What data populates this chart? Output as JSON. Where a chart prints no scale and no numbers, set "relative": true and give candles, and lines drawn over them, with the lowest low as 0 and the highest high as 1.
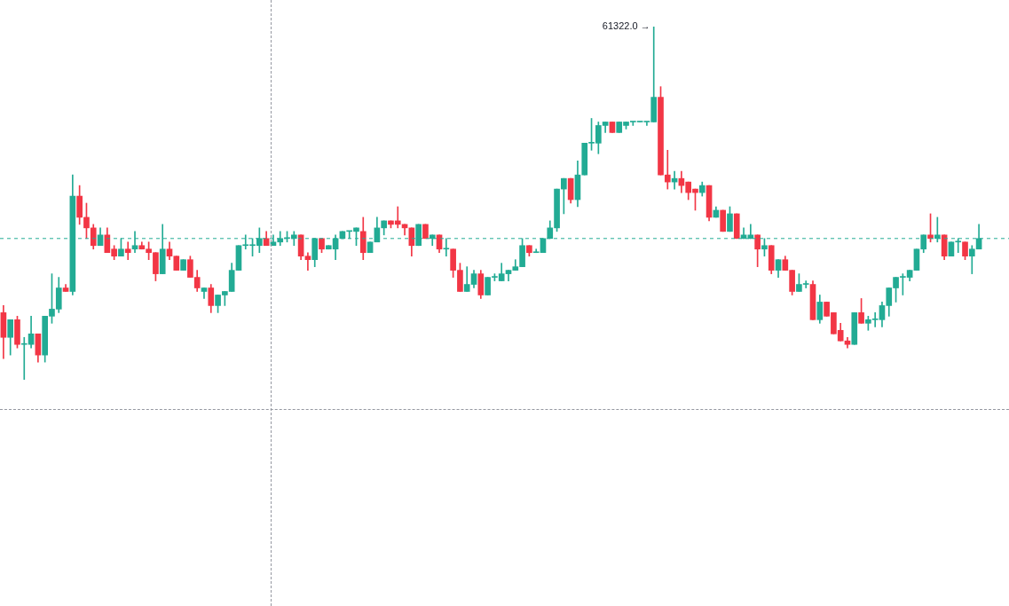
{
  "chart_data": {
    "type": "candlestick",
    "relative": true,
    "categories": [
      null,
      null,
      null,
      null,
      null,
      null,
      null,
      null,
      null,
      null,
      null,
      null,
      null,
      null,
      null,
      null,
      null,
      null,
      null,
      null,
      null,
      null,
      null,
      null,
      null,
      null,
      null,
      null,
      null,
      null,
      null,
      null,
      null,
      null,
      null,
      null,
      null,
      null,
      null,
      null,
      null,
      null,
      null,
      null,
      null,
      null,
      null,
      null,
      null,
      null,
      null,
      null,
      null,
      null,
      null,
      null,
      null,
      null,
      null,
      null,
      null,
      null,
      null,
      null,
      null,
      null,
      null,
      null,
      null,
      null,
      null,
      null,
      null,
      null,
      null,
      null,
      null,
      null,
      null,
      null,
      null,
      null,
      null,
      null,
      null,
      null,
      null,
      null,
      null,
      null,
      null,
      null,
      null,
      null,
      null,
      null,
      null,
      null,
      null,
      null,
      null,
      null,
      null,
      null,
      null,
      null,
      null,
      null,
      null,
      null,
      null,
      null,
      null,
      null,
      null,
      null,
      null,
      null,
      null,
      null,
      null,
      null,
      null,
      null,
      null,
      null,
      null,
      null,
      null,
      null,
      null,
      null,
      null,
      null,
      null,
      null,
      null,
      null,
      null,
      null,
      null,
      null
    ],
    "ohlc": [
      [
        0.19,
        0.21,
        0.06,
        0.12
      ],
      [
        0.12,
        0.17,
        0.07,
        0.17
      ],
      [
        0.17,
        0.18,
        0.09,
        0.1
      ],
      [
        0.1,
        0.12,
        0,
        0.1
      ],
      [
        0.1,
        0.18,
        0.09,
        0.13
      ],
      [
        0.13,
        0.13,
        0.05,
        0.07
      ],
      [
        0.07,
        0.18,
        0.05,
        0.18
      ],
      [
        0.18,
        0.3,
        0.16,
        0.2
      ],
      [
        0.2,
        0.29,
        0.19,
        0.26
      ],
      [
        0.26,
        0.27,
        0.25,
        0.25
      ],
      [
        0.25,
        0.58,
        0.24,
        0.52
      ],
      [
        0.52,
        0.55,
        0.44,
        0.46
      ],
      [
        0.46,
        0.5,
        0.4,
        0.43
      ],
      [
        0.43,
        0.44,
        0.37,
        0.38
      ],
      [
        0.38,
        0.43,
        0.38,
        0.41
      ],
      [
        0.41,
        0.43,
        0.36,
        0.36
      ],
      [
        0.37,
        0.38,
        0.34,
        0.35
      ],
      [
        0.35,
        0.4,
        0.35,
        0.37
      ],
      [
        0.37,
        0.39,
        0.34,
        0.36
      ],
      [
        0.37,
        0.42,
        0.36,
        0.38
      ],
      [
        0.38,
        0.39,
        0.37,
        0.37
      ],
      [
        0.37,
        0.39,
        0.34,
        0.36
      ],
      [
        0.36,
        0.36,
        0.28,
        0.3
      ],
      [
        0.3,
        0.44,
        0.3,
        0.37
      ],
      [
        0.37,
        0.39,
        0.34,
        0.35
      ],
      [
        0.35,
        0.35,
        0.31,
        0.31
      ],
      [
        0.31,
        0.34,
        0.31,
        0.34
      ],
      [
        0.34,
        0.35,
        0.29,
        0.29
      ],
      [
        0.29,
        0.31,
        0.25,
        0.26
      ],
      [
        0.25,
        0.26,
        0.23,
        0.26
      ],
      [
        0.26,
        0.27,
        0.19,
        0.21
      ],
      [
        0.21,
        0.24,
        0.19,
        0.24
      ],
      [
        0.24,
        0.25,
        0.21,
        0.25
      ],
      [
        0.25,
        0.33,
        0.25,
        0.31
      ],
      [
        0.31,
        0.38,
        0.31,
        0.38
      ],
      [
        0.38,
        0.41,
        0.37,
        0.38
      ],
      [
        0.38,
        0.4,
        0.35,
        0.38
      ],
      [
        0.38,
        0.43,
        0.36,
        0.4
      ],
      [
        0.4,
        0.42,
        0.38,
        0.38
      ],
      [
        0.38,
        0.41,
        0.38,
        0.39
      ],
      [
        0.39,
        0.42,
        0.38,
        0.4
      ],
      [
        0.4,
        0.42,
        0.39,
        0.4
      ],
      [
        0.4,
        0.42,
        0.38,
        0.41
      ],
      [
        0.41,
        0.41,
        0.34,
        0.35
      ],
      [
        0.35,
        0.36,
        0.31,
        0.34
      ],
      [
        0.34,
        0.4,
        0.32,
        0.4
      ],
      [
        0.4,
        0.4,
        0.36,
        0.37
      ],
      [
        0.37,
        0.38,
        0.37,
        0.38
      ],
      [
        0.37,
        0.41,
        0.34,
        0.4
      ],
      [
        0.4,
        0.42,
        0.4,
        0.42
      ],
      [
        0.42,
        0.42,
        0.4,
        0.42
      ],
      [
        0.42,
        0.43,
        0.38,
        0.43
      ],
      [
        0.42,
        0.46,
        0.34,
        0.36
      ],
      [
        0.36,
        0.39,
        0.36,
        0.39
      ],
      [
        0.39,
        0.46,
        0.39,
        0.43
      ],
      [
        0.43,
        0.45,
        0.41,
        0.45
      ],
      [
        0.45,
        0.45,
        0.43,
        0.44
      ],
      [
        0.45,
        0.49,
        0.43,
        0.44
      ],
      [
        0.44,
        0.44,
        0.41,
        0.43
      ],
      [
        0.43,
        0.43,
        0.35,
        0.38
      ],
      [
        0.38,
        0.44,
        0.38,
        0.44
      ],
      [
        0.44,
        0.44,
        0.4,
        0.4
      ],
      [
        0.4,
        0.41,
        0.38,
        0.41
      ],
      [
        0.41,
        0.41,
        0.36,
        0.37
      ],
      [
        0.37,
        0.4,
        0.35,
        0.37
      ],
      [
        0.37,
        0.37,
        0.29,
        0.31
      ],
      [
        0.31,
        0.33,
        0.25,
        0.25
      ],
      [
        0.25,
        0.32,
        0.25,
        0.27
      ],
      [
        0.27,
        0.31,
        0.26,
        0.3
      ],
      [
        0.3,
        0.31,
        0.23,
        0.24
      ],
      [
        0.24,
        0.29,
        0.24,
        0.29
      ],
      [
        0.29,
        0.3,
        0.28,
        0.29
      ],
      [
        0.28,
        0.33,
        0.28,
        0.3
      ],
      [
        0.3,
        0.31,
        0.28,
        0.31
      ],
      [
        0.31,
        0.34,
        0.31,
        0.32
      ],
      [
        0.32,
        0.4,
        0.32,
        0.38
      ],
      [
        0.38,
        0.38,
        0.35,
        0.36
      ],
      [
        0.36,
        0.37,
        0.36,
        0.36
      ],
      [
        0.36,
        0.4,
        0.36,
        0.4
      ],
      [
        0.4,
        0.45,
        0.4,
        0.43
      ],
      [
        0.43,
        0.54,
        0.42,
        0.54
      ],
      [
        0.54,
        0.57,
        0.47,
        0.57
      ],
      [
        0.57,
        0.57,
        0.5,
        0.51
      ],
      [
        0.51,
        0.62,
        0.49,
        0.58
      ],
      [
        0.58,
        0.67,
        0.58,
        0.67
      ],
      [
        0.67,
        0.74,
        0.65,
        0.67
      ],
      [
        0.67,
        0.73,
        0.64,
        0.72
      ],
      [
        0.72,
        0.73,
        0.7,
        0.73
      ],
      [
        0.73,
        0.73,
        0.7,
        0.7
      ],
      [
        0.7,
        0.73,
        0.7,
        0.73
      ],
      [
        0.72,
        0.73,
        0.71,
        0.73
      ],
      [
        0.73,
        0.73,
        0.72,
        0.73
      ],
      [
        0.73,
        0.73,
        0.73,
        0.73
      ],
      [
        0.73,
        0.73,
        0.72,
        0.73
      ],
      [
        0.73,
        1,
        0.73,
        0.8
      ],
      [
        0.8,
        0.83,
        0.58,
        0.58
      ],
      [
        0.58,
        0.65,
        0.54,
        0.56
      ],
      [
        0.56,
        0.59,
        0.54,
        0.57
      ],
      [
        0.57,
        0.59,
        0.53,
        0.55
      ],
      [
        0.56,
        0.56,
        0.51,
        0.53
      ],
      [
        0.54,
        0.54,
        0.48,
        0.53
      ],
      [
        0.53,
        0.56,
        0.52,
        0.55
      ],
      [
        0.55,
        0.55,
        0.45,
        0.46
      ],
      [
        0.46,
        0.49,
        0.46,
        0.48
      ],
      [
        0.48,
        0.48,
        0.42,
        0.42
      ],
      [
        0.42,
        0.49,
        0.42,
        0.47
      ],
      [
        0.47,
        0.47,
        0.4,
        0.4
      ],
      [
        0.4,
        0.43,
        0.4,
        0.41
      ],
      [
        0.4,
        0.44,
        0.4,
        0.41
      ],
      [
        0.41,
        0.41,
        0.32,
        0.37
      ],
      [
        0.37,
        0.4,
        0.35,
        0.38
      ],
      [
        0.38,
        0.38,
        0.3,
        0.31
      ],
      [
        0.31,
        0.34,
        0.29,
        0.34
      ],
      [
        0.34,
        0.35,
        0.31,
        0.31
      ],
      [
        0.31,
        0.31,
        0.24,
        0.25
      ],
      [
        0.25,
        0.3,
        0.25,
        0.27
      ],
      [
        0.27,
        0.28,
        0.26,
        0.27
      ],
      [
        0.27,
        0.28,
        0.17,
        0.17
      ],
      [
        0.17,
        0.24,
        0.16,
        0.22
      ],
      [
        0.22,
        0.22,
        0.18,
        0.18
      ],
      [
        0.19,
        0.19,
        0.13,
        0.13
      ],
      [
        0.14,
        0.16,
        0.11,
        0.11
      ],
      [
        0.11,
        0.12,
        0.09,
        0.1
      ],
      [
        0.1,
        0.19,
        0.1,
        0.19
      ],
      [
        0.19,
        0.23,
        0.16,
        0.16
      ],
      [
        0.16,
        0.18,
        0.14,
        0.17
      ],
      [
        0.17,
        0.19,
        0.15,
        0.17
      ],
      [
        0.17,
        0.22,
        0.15,
        0.21
      ],
      [
        0.21,
        0.26,
        0.18,
        0.26
      ],
      [
        0.26,
        0.29,
        0.22,
        0.29
      ],
      [
        0.29,
        0.3,
        0.24,
        0.29
      ],
      [
        0.29,
        0.31,
        0.28,
        0.31
      ],
      [
        0.31,
        0.37,
        0.31,
        0.37
      ],
      [
        0.37,
        0.41,
        0.36,
        0.41
      ],
      [
        0.41,
        0.47,
        0.39,
        0.4
      ],
      [
        0.4,
        0.46,
        0.39,
        0.41
      ],
      [
        0.41,
        0.41,
        0.34,
        0.35
      ],
      [
        0.35,
        0.39,
        0.35,
        0.39
      ],
      [
        0.39,
        0.4,
        0.36,
        0.39
      ],
      [
        0.39,
        0.39,
        0.34,
        0.35
      ],
      [
        0.35,
        0.38,
        0.3,
        0.37
      ],
      [
        0.37,
        0.44,
        0.37,
        0.4
      ]
    ],
    "annotations": [
      "61322.0 →"
    ],
    "ref_lines": [
      {
        "axis": "y",
        "value": 0.4,
        "color": "#22ab94",
        "line_style": "dashed"
      }
    ]
  }
}
